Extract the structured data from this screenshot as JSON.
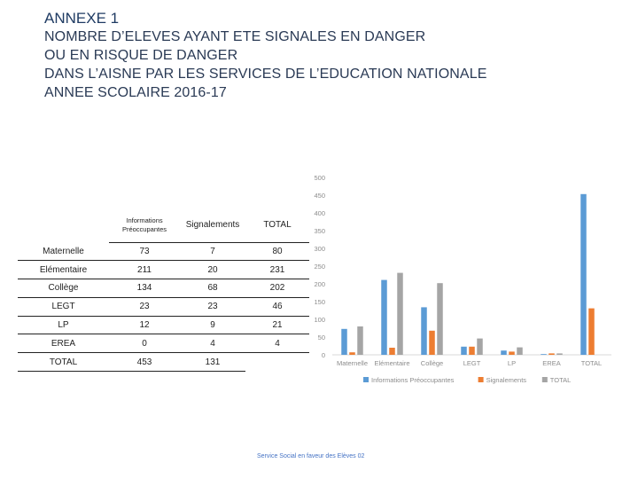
{
  "header": {
    "annex": "ANNEXE 1",
    "lines": [
      "NOMBRE D’ELEVES AYANT ETE SIGNALES EN DANGER",
      "OU EN RISQUE DE DANGER",
      "DANS L’AISNE PAR LES SERVICES DE L’EDUCATION NATIONALE",
      "ANNEE SCOLAIRE 2016-17"
    ]
  },
  "table": {
    "columns": [
      "",
      "Informations Préoccupantes",
      "Signalements",
      "TOTAL"
    ],
    "rows": [
      [
        "Maternelle",
        "73",
        "7",
        "80"
      ],
      [
        "Elémentaire",
        "211",
        "20",
        "231"
      ],
      [
        "Collège",
        "134",
        "68",
        "202"
      ],
      [
        "LEGT",
        "23",
        "23",
        "46"
      ],
      [
        "LP",
        "12",
        "9",
        "21"
      ],
      [
        "EREA",
        "0",
        "4",
        "4"
      ],
      [
        "TOTAL",
        "453",
        "131",
        ""
      ]
    ]
  },
  "chart_data": {
    "type": "bar",
    "categories": [
      "Maternelle",
      "Elémentaire",
      "Collège",
      "LEGT",
      "LP",
      "EREA",
      "TOTAL"
    ],
    "series": [
      {
        "name": "Informations Préoccupantes",
        "color": "#5b9bd5",
        "values": [
          73,
          211,
          134,
          23,
          12,
          0,
          453
        ]
      },
      {
        "name": "Signalements",
        "color": "#ed7d31",
        "values": [
          7,
          20,
          68,
          23,
          9,
          4,
          131
        ]
      },
      {
        "name": "TOTAL",
        "color": "#a5a5a5",
        "values": [
          80,
          231,
          202,
          46,
          21,
          4,
          null
        ]
      }
    ],
    "ylim": [
      0,
      500
    ],
    "yticks": [
      0,
      50,
      100,
      150,
      200,
      250,
      300,
      350,
      400,
      450,
      500
    ],
    "grid": false,
    "legend_position": "bottom"
  },
  "footer": "Service Social en faveur des Elèves 02"
}
